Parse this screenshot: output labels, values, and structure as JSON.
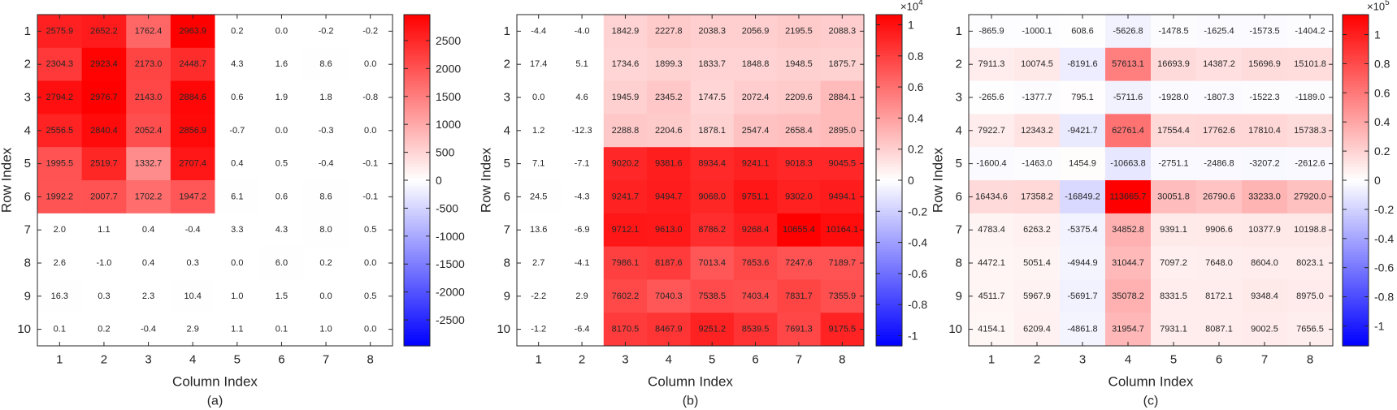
{
  "colors": {
    "neg": "#0000ff",
    "zero": "#ffffff",
    "pos": "#ff0000",
    "axis": "#262626"
  },
  "chart_data": [
    {
      "type": "heatmap",
      "caption": "(a)",
      "xlabel": "Column Index",
      "ylabel": "Row Index",
      "x_ticks": [
        "1",
        "2",
        "3",
        "4",
        "5",
        "6",
        "7",
        "8"
      ],
      "y_ticks": [
        "1",
        "2",
        "3",
        "4",
        "5",
        "6",
        "7",
        "8",
        "9",
        "10"
      ],
      "clim": [
        -2963.9,
        2963.9
      ],
      "colorbar_ticks": [
        -2500,
        -2000,
        -1500,
        -1000,
        -500,
        0,
        500,
        1000,
        1500,
        2000,
        2500
      ],
      "colorbar_tick_labels": [
        "-2500",
        "-2000",
        "-1500",
        "-1000",
        "-500",
        "0",
        "500",
        "1000",
        "1500",
        "2000",
        "2500"
      ],
      "colorbar_exponent": "",
      "values": [
        [
          2575.9,
          2652.2,
          1762.4,
          2963.9,
          0.2,
          -0.0,
          -0.2,
          -0.2
        ],
        [
          2304.3,
          2923.4,
          2173.0,
          2448.7,
          4.3,
          1.6,
          8.6,
          0.0
        ],
        [
          2794.2,
          2976.7,
          2143.0,
          2884.6,
          0.6,
          1.9,
          1.8,
          -0.8
        ],
        [
          2556.5,
          2840.4,
          2052.4,
          2856.9,
          -0.7,
          0.0,
          -0.3,
          -0.0
        ],
        [
          1995.5,
          2519.7,
          1332.7,
          2707.4,
          0.4,
          0.5,
          -0.4,
          -0.1
        ],
        [
          1992.2,
          2007.7,
          1702.2,
          1947.2,
          6.1,
          0.6,
          8.6,
          -0.1
        ],
        [
          2.0,
          1.1,
          0.4,
          -0.4,
          3.3,
          4.3,
          8.0,
          0.5
        ],
        [
          2.6,
          -1.0,
          0.4,
          0.3,
          0.0,
          6.0,
          0.2,
          0.0
        ],
        [
          16.3,
          0.3,
          2.3,
          10.4,
          1.0,
          1.5,
          0.0,
          0.5
        ],
        [
          0.1,
          0.2,
          -0.4,
          2.9,
          1.1,
          0.1,
          1.0,
          0.0
        ]
      ]
    },
    {
      "type": "heatmap",
      "caption": "(b)",
      "xlabel": "Column Index",
      "ylabel": "Row Index",
      "x_ticks": [
        "1",
        "2",
        "3",
        "4",
        "5",
        "6",
        "7",
        "8"
      ],
      "y_ticks": [
        "1",
        "2",
        "3",
        "4",
        "5",
        "6",
        "7",
        "8",
        "9",
        "10"
      ],
      "clim": [
        -10655.4,
        10655.4
      ],
      "colorbar_ticks": [
        -10000,
        -8000,
        -6000,
        -4000,
        -2000,
        0,
        2000,
        4000,
        6000,
        8000,
        10000
      ],
      "colorbar_tick_labels": [
        "-1",
        "-0.8",
        "-0.6",
        "-0.4",
        "-0.2",
        "0",
        "0.2",
        "0.4",
        "0.6",
        "0.8",
        "1"
      ],
      "colorbar_exponent": "×10",
      "colorbar_exponent_power": "4",
      "values": [
        [
          -4.4,
          -4.0,
          1842.9,
          2227.8,
          2038.3,
          2056.9,
          2195.5,
          2088.3
        ],
        [
          17.4,
          5.1,
          1734.6,
          1899.3,
          1833.7,
          1848.8,
          1948.5,
          1875.7
        ],
        [
          -0.0,
          4.6,
          1945.9,
          2345.2,
          1747.5,
          2072.4,
          2209.6,
          2884.1
        ],
        [
          1.2,
          -12.3,
          2288.8,
          2204.6,
          1878.1,
          2547.4,
          2658.4,
          2895.0
        ],
        [
          7.1,
          -7.1,
          9020.2,
          9381.6,
          8934.4,
          9241.1,
          9018.3,
          9045.5
        ],
        [
          24.5,
          -4.3,
          9241.7,
          9494.7,
          9068.0,
          9751.1,
          9302.0,
          9494.1
        ],
        [
          13.6,
          -6.9,
          9712.1,
          9613.0,
          8786.2,
          9268.4,
          10655.4,
          10164.1
        ],
        [
          2.7,
          -4.1,
          7986.1,
          8187.6,
          7013.4,
          7653.6,
          7247.6,
          7189.7
        ],
        [
          -2.2,
          2.9,
          7602.2,
          7040.3,
          7538.5,
          7403.4,
          7831.7,
          7355.9
        ],
        [
          -1.2,
          -6.4,
          8170.5,
          8467.9,
          9251.2,
          8539.5,
          7691.3,
          9175.5
        ]
      ]
    },
    {
      "type": "heatmap",
      "caption": "(c)",
      "xlabel": "Column Index",
      "ylabel": "Row Index",
      "x_ticks": [
        "1",
        "2",
        "3",
        "4",
        "5",
        "6",
        "7",
        "8"
      ],
      "y_ticks": [
        "1",
        "2",
        "3",
        "4",
        "5",
        "6",
        "7",
        "8",
        "9",
        "10"
      ],
      "clim": [
        -113665.7,
        113665.7
      ],
      "colorbar_ticks": [
        -100000,
        -80000,
        -60000,
        -40000,
        -20000,
        0,
        20000,
        40000,
        60000,
        80000,
        100000
      ],
      "colorbar_tick_labels": [
        "-1",
        "-0.8",
        "-0.6",
        "-0.4",
        "-0.2",
        "0",
        "0.2",
        "0.4",
        "0.6",
        "0.8",
        "1"
      ],
      "colorbar_exponent": "×10",
      "colorbar_exponent_power": "5",
      "values": [
        [
          -865.9,
          -1000.1,
          608.6,
          -5626.8,
          -1478.5,
          -1625.4,
          -1573.5,
          -1404.2
        ],
        [
          7911.3,
          10074.5,
          -8191.6,
          57613.1,
          16693.9,
          14387.2,
          15696.9,
          15101.8
        ],
        [
          -265.6,
          -1377.7,
          795.1,
          -5711.6,
          -1928.0,
          -1807.3,
          -1522.3,
          -1189.0
        ],
        [
          7922.7,
          12343.2,
          -9421.7,
          62761.4,
          17554.4,
          17762.6,
          17810.4,
          15738.3
        ],
        [
          -1600.4,
          -1463.0,
          1454.9,
          -10663.8,
          -2751.1,
          -2486.8,
          -3207.2,
          -2612.6
        ],
        [
          16434.6,
          17358.2,
          -16849.2,
          113665.7,
          30051.8,
          26790.6,
          33233.0,
          27920.0
        ],
        [
          4783.4,
          6263.2,
          -5375.4,
          34852.8,
          9391.1,
          9906.6,
          10377.9,
          10198.8
        ],
        [
          4472.1,
          5051.4,
          -4944.9,
          31044.7,
          7097.2,
          7648.0,
          8604.0,
          8023.1
        ],
        [
          4511.7,
          5967.9,
          -5691.7,
          35078.2,
          8331.5,
          8172.1,
          9348.4,
          8975.0
        ],
        [
          4154.1,
          6209.4,
          -4861.8,
          31954.7,
          7931.1,
          8087.1,
          9002.5,
          7656.5
        ]
      ]
    }
  ]
}
